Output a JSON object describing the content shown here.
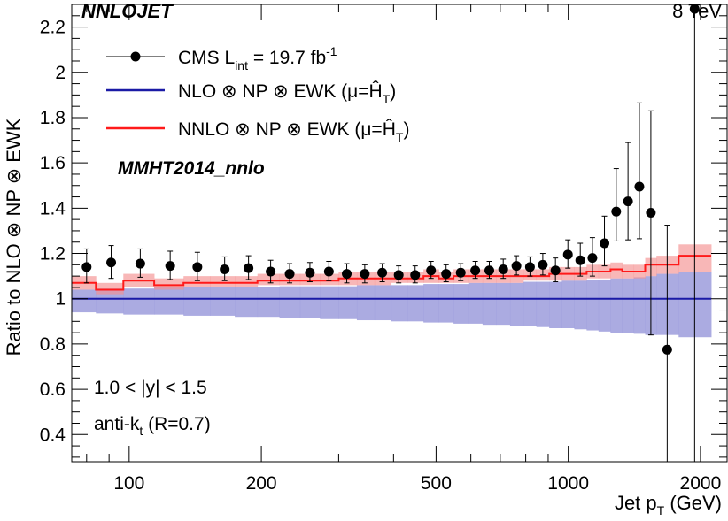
{
  "header": {
    "left": "NNLOJET",
    "right": "8 TeV"
  },
  "legend": {
    "data_label": "CMS L",
    "data_sub": "int",
    "data_suffix": " = 19.7 fb",
    "data_sup": "-1",
    "nlo_label": "NLO ⊗ NP ⊗ EWK (μ=",
    "nnlo_label": "NNLO ⊗ NP ⊗ EWK (μ=",
    "scale_symbol": "Ĥ",
    "scale_sub": "T",
    "close_paren": ")"
  },
  "pdf_label": "MMHT2014_nnlo",
  "rapidity_label": "1.0 < |y| < 1.5",
  "algo_label": "anti-k",
  "algo_sub": "t",
  "algo_suffix": " (R=0.7)",
  "chart_data": {
    "type": "line",
    "xscale": "log",
    "xlim": [
      74,
      2300
    ],
    "ylim": [
      0.28,
      2.3
    ],
    "xlabel": "Jet p",
    "xlabel_sub": "T",
    "xlabel_unit": " (GeV)",
    "ylabel": "Ratio to NLO ⊗ NP ⊗ EWK",
    "xticks": [
      100,
      200,
      500,
      1000,
      2000
    ],
    "xtick_labels": [
      "100",
      "200",
      "500",
      "1000",
      "2000"
    ],
    "yticks": [
      0.4,
      0.6,
      0.8,
      1,
      1.2,
      1.4,
      1.6,
      1.8,
      2,
      2.2
    ],
    "ytick_labels": [
      "0.4",
      "0.6",
      "0.8",
      "1",
      "1.2",
      "1.4",
      "1.6",
      "1.8",
      "2",
      "2.2"
    ],
    "colors": {
      "nlo": "#1a1aa6",
      "nlo_band": "#9c9cdc",
      "nnlo": "#ff1a1a",
      "nnlo_band": "#f59090",
      "data": "#000000"
    },
    "bins": [
      74,
      84,
      97,
      114,
      133,
      153,
      174,
      196,
      220,
      245,
      272,
      300,
      330,
      362,
      395,
      430,
      468,
      507,
      548,
      592,
      638,
      686,
      737,
      790,
      846,
      905,
      967,
      1032,
      1101,
      1172,
      1248,
      1327,
      1410,
      1497,
      1588,
      1784,
      2116
    ],
    "nlo_band_low": [
      0.94,
      0.935,
      0.93,
      0.93,
      0.925,
      0.925,
      0.92,
      0.92,
      0.915,
      0.915,
      0.91,
      0.91,
      0.905,
      0.905,
      0.9,
      0.9,
      0.895,
      0.895,
      0.89,
      0.89,
      0.885,
      0.885,
      0.88,
      0.88,
      0.875,
      0.87,
      0.87,
      0.865,
      0.86,
      0.855,
      0.85,
      0.85,
      0.845,
      0.84,
      0.84,
      0.83
    ],
    "nlo_band_high": [
      1.04,
      1.045,
      1.045,
      1.05,
      1.05,
      1.05,
      1.05,
      1.05,
      1.055,
      1.055,
      1.055,
      1.055,
      1.06,
      1.06,
      1.06,
      1.06,
      1.065,
      1.065,
      1.065,
      1.07,
      1.07,
      1.07,
      1.07,
      1.075,
      1.075,
      1.075,
      1.08,
      1.08,
      1.085,
      1.085,
      1.09,
      1.09,
      1.095,
      1.1,
      1.11,
      1.12
    ],
    "nnlo_central": [
      1.07,
      1.04,
      1.08,
      1.06,
      1.07,
      1.07,
      1.07,
      1.08,
      1.08,
      1.08,
      1.08,
      1.09,
      1.09,
      1.09,
      1.09,
      1.09,
      1.1,
      1.09,
      1.1,
      1.1,
      1.1,
      1.1,
      1.1,
      1.1,
      1.1,
      1.11,
      1.11,
      1.11,
      1.12,
      1.12,
      1.13,
      1.12,
      1.12,
      1.15,
      1.15,
      1.19
    ],
    "nnlo_band_low": [
      1.04,
      1.02,
      1.05,
      1.04,
      1.05,
      1.05,
      1.05,
      1.06,
      1.06,
      1.06,
      1.06,
      1.06,
      1.06,
      1.06,
      1.07,
      1.07,
      1.07,
      1.07,
      1.07,
      1.07,
      1.07,
      1.07,
      1.07,
      1.08,
      1.08,
      1.08,
      1.08,
      1.08,
      1.09,
      1.09,
      1.09,
      1.09,
      1.09,
      1.1,
      1.11,
      1.12
    ],
    "nnlo_band_high": [
      1.1,
      1.07,
      1.11,
      1.09,
      1.1,
      1.1,
      1.1,
      1.11,
      1.11,
      1.11,
      1.11,
      1.12,
      1.12,
      1.12,
      1.12,
      1.12,
      1.13,
      1.12,
      1.13,
      1.13,
      1.13,
      1.13,
      1.13,
      1.13,
      1.13,
      1.14,
      1.14,
      1.14,
      1.15,
      1.15,
      1.16,
      1.15,
      1.15,
      1.18,
      1.19,
      1.24
    ],
    "data_x": [
      80,
      91,
      106,
      124,
      143,
      165,
      187,
      210,
      232,
      258,
      285,
      313,
      344,
      377,
      411,
      448,
      487,
      527,
      569,
      614,
      661,
      711,
      762,
      818,
      875,
      935,
      998,
      1065,
      1135,
      1209,
      1286,
      1368,
      1452,
      1542,
      1680,
      1940
    ],
    "data_y": [
      1.14,
      1.16,
      1.155,
      1.145,
      1.14,
      1.13,
      1.135,
      1.12,
      1.11,
      1.115,
      1.12,
      1.11,
      1.11,
      1.115,
      1.105,
      1.105,
      1.125,
      1.11,
      1.115,
      1.125,
      1.125,
      1.13,
      1.145,
      1.14,
      1.15,
      1.125,
      1.195,
      1.17,
      1.18,
      1.245,
      1.385,
      1.43,
      1.495,
      1.38,
      0.775,
      2.28
    ],
    "data_err_low": [
      0.07,
      0.07,
      0.06,
      0.06,
      0.06,
      0.05,
      0.05,
      0.05,
      0.04,
      0.04,
      0.04,
      0.04,
      0.04,
      0.04,
      0.035,
      0.035,
      0.035,
      0.035,
      0.035,
      0.035,
      0.035,
      0.04,
      0.04,
      0.04,
      0.045,
      0.05,
      0.06,
      0.07,
      0.08,
      0.1,
      0.13,
      0.17,
      0.23,
      0.54,
      1.0,
      2.0
    ],
    "data_err_high": [
      0.08,
      0.075,
      0.065,
      0.065,
      0.065,
      0.055,
      0.055,
      0.05,
      0.045,
      0.045,
      0.045,
      0.045,
      0.04,
      0.04,
      0.04,
      0.04,
      0.04,
      0.04,
      0.04,
      0.04,
      0.04,
      0.045,
      0.045,
      0.045,
      0.05,
      0.055,
      0.065,
      0.075,
      0.09,
      0.12,
      0.19,
      0.26,
      0.37,
      0.45,
      0.55,
      0.0
    ]
  }
}
